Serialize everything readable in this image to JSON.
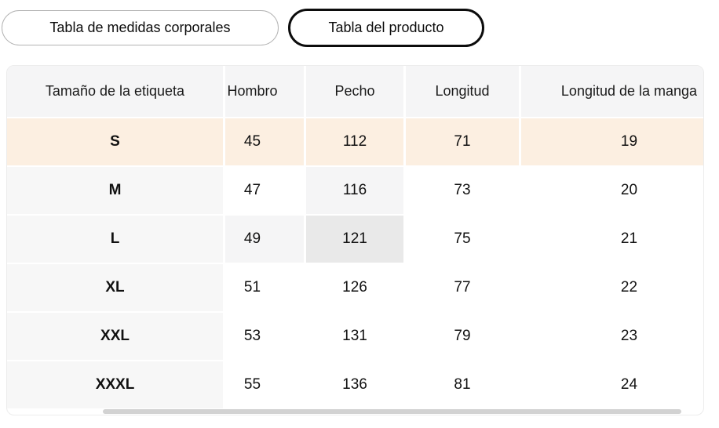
{
  "tabs": [
    {
      "label": "Tabla de medidas corporales",
      "selected": false
    },
    {
      "label": "Tabla del producto",
      "selected": true
    }
  ],
  "table": {
    "columns": [
      "Tamaño de la etiqueta",
      "Hombro",
      "Pecho",
      "Longitud",
      "Longitud de la manga"
    ],
    "rows": [
      {
        "size": "S",
        "values": [
          "45",
          "112",
          "71",
          "19"
        ]
      },
      {
        "size": "M",
        "values": [
          "47",
          "116",
          "73",
          "20"
        ]
      },
      {
        "size": "L",
        "values": [
          "49",
          "121",
          "75",
          "21"
        ]
      },
      {
        "size": "XL",
        "values": [
          "51",
          "126",
          "77",
          "22"
        ]
      },
      {
        "size": "XXL",
        "values": [
          "53",
          "131",
          "79",
          "23"
        ]
      },
      {
        "size": "XXXL",
        "values": [
          "55",
          "136",
          "81",
          "24"
        ]
      }
    ],
    "highlighted_row": "S",
    "hovered_cell": {
      "row": "L",
      "column": "Pecho"
    }
  },
  "colors": {
    "recommended_row_bg": "#fcefe1",
    "header_bg": "#f5f5f6",
    "row_label_bg": "#f7f7f7",
    "hover_trail_bg": "#f5f5f6",
    "hover_cell_bg": "#e9e9e9",
    "selected_tab_border": "#0c0c0c",
    "unselected_tab_border": "#b3b3b3",
    "scrollbar_thumb": "#d2d2d2"
  }
}
